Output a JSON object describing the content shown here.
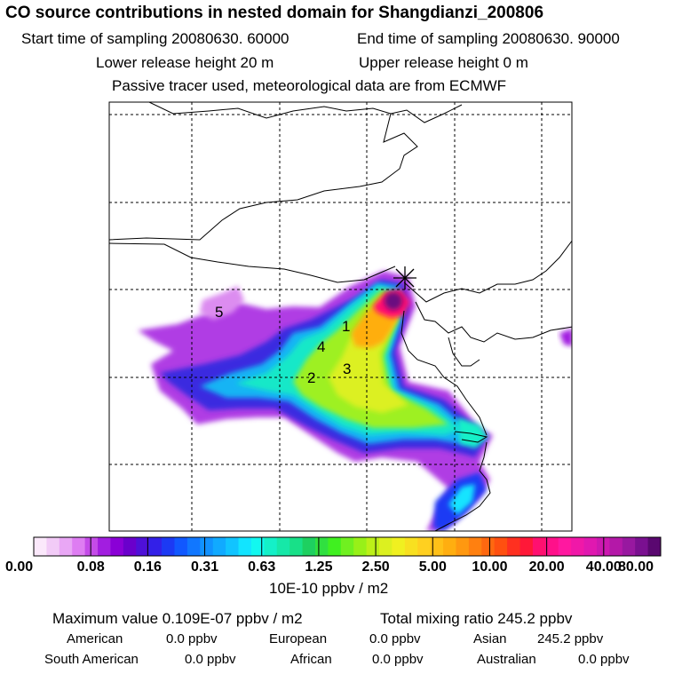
{
  "header": {
    "title": "CO  source contributions in nested domain for Shangdianzi_200806",
    "start_label": "Start time of sampling 20080630. 60000",
    "end_label": "End time of sampling 20080630. 90000",
    "lower_label": "Lower release height   20 m",
    "upper_label": "Upper release height    0 m",
    "tracer_label": "Passive tracer used, meteorological data are from ECMWF"
  },
  "chart_data": {
    "type": "heatmap",
    "title": "CO  source contributions in nested domain for Shangdianzi_200806",
    "colorbar": {
      "label": "10E-10 ppbv / m2",
      "ticks": [
        "0.00",
        "0.08",
        "0.16",
        "0.31",
        "0.63",
        "1.25",
        "2.50",
        "5.00",
        "10.00",
        "20.00",
        "40.00",
        "80.00"
      ],
      "colors": [
        "#fbe8fb",
        "#f2cbf7",
        "#e9a7f5",
        "#de7df2",
        "#c44be8",
        "#a21ee0",
        "#8a00d6",
        "#6a00cc",
        "#4e10d8",
        "#3320e8",
        "#1c3af4",
        "#1158ff",
        "#1177ff",
        "#1192ff",
        "#11aaff",
        "#11c4ff",
        "#12e4ff",
        "#12f8f0",
        "#14f0c8",
        "#16e8a8",
        "#18e088",
        "#1ed060",
        "#30e040",
        "#40f020",
        "#70f020",
        "#98f018",
        "#bcf018",
        "#dcf020",
        "#f0f020",
        "#f8e020",
        "#ffd020",
        "#ffc018",
        "#ffae10",
        "#ff9810",
        "#ff8010",
        "#ff6810",
        "#ff5010",
        "#ff3020",
        "#ff1838",
        "#ff1070",
        "#ff108a",
        "#ff18a0",
        "#f018a8",
        "#e018b0",
        "#cc18b0",
        "#b418a8",
        "#9818a0",
        "#7a1090",
        "#5a0870"
      ],
      "ticks_per_band": 4
    },
    "site_marker": "receptor-cross",
    "source_regions": [
      "1",
      "2",
      "3",
      "4",
      "5"
    ],
    "grid": true
  },
  "footer": {
    "max_value": "Maximum value  0.109E-07 ppbv / m2",
    "total_mixing": "Total mixing ratio     245.2 ppbv",
    "american": "American",
    "american_val": "0.0 ppbv",
    "european": "European",
    "european_val": "0.0 ppbv",
    "asian": "Asian",
    "asian_val": "245.2 ppbv",
    "south_american": "South American",
    "south_american_val": "0.0 ppbv",
    "african": "African",
    "african_val": "0.0 ppbv",
    "australian": "Australian",
    "australian_val": "0.0 ppbv"
  }
}
